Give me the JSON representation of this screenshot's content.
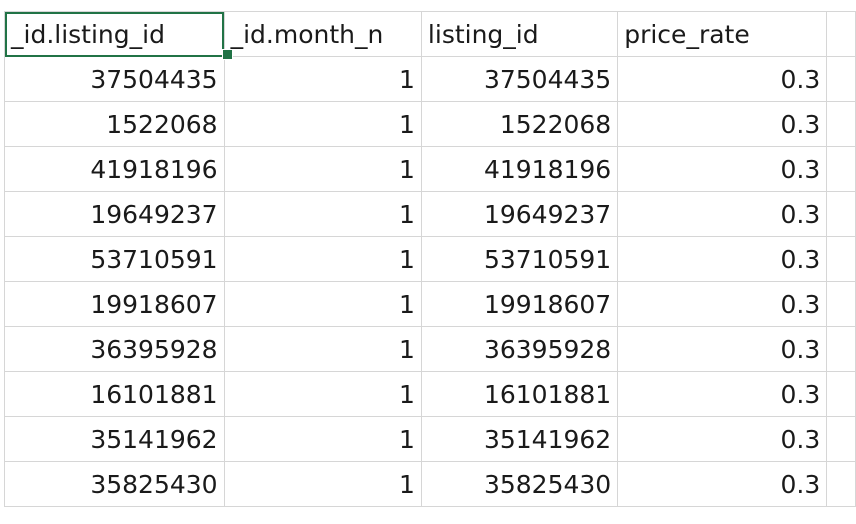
{
  "columns": [
    "_id.listing_id",
    "_id.month_n",
    "listing_id",
    "price_rate"
  ],
  "rows": [
    [
      "37504435",
      "1",
      "37504435",
      "0.3"
    ],
    [
      "1522068",
      "1",
      "1522068",
      "0.3"
    ],
    [
      "41918196",
      "1",
      "41918196",
      "0.3"
    ],
    [
      "19649237",
      "1",
      "19649237",
      "0.3"
    ],
    [
      "53710591",
      "1",
      "53710591",
      "0.3"
    ],
    [
      "19918607",
      "1",
      "19918607",
      "0.3"
    ],
    [
      "36395928",
      "1",
      "36395928",
      "0.3"
    ],
    [
      "16101881",
      "1",
      "16101881",
      "0.3"
    ],
    [
      "35141962",
      "1",
      "35141962",
      "0.3"
    ],
    [
      "35825430",
      "1",
      "35825430",
      "0.3"
    ]
  ],
  "selection_color": "#217346",
  "gridline_color": "#d6d6d6"
}
